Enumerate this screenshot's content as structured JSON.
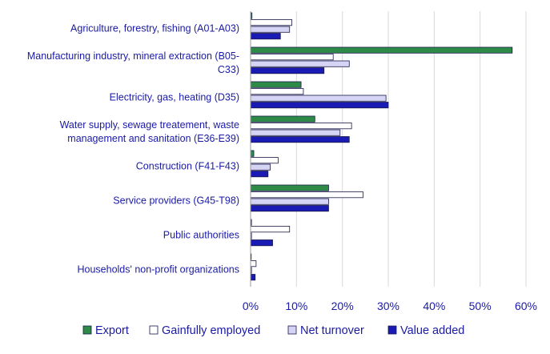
{
  "chart_data": {
    "type": "bar",
    "orientation": "horizontal",
    "title": "",
    "xlabel": "",
    "ylabel": "",
    "xlim": [
      0,
      60
    ],
    "x_ticks": [
      "0%",
      "10%",
      "20%",
      "30%",
      "40%",
      "50%",
      "60%"
    ],
    "grid": "vertical",
    "legend_position": "bottom",
    "categories": [
      [
        "Agriculture, forestry, fishing (A01-A03)"
      ],
      [
        "Manufacturing industry, mineral extraction (B05-",
        "C33)"
      ],
      [
        "Electricity, gas, heating (D35)"
      ],
      [
        "Water supply, sewage treatement, waste",
        "management and sanitation (E36-E39)"
      ],
      [
        "Construction (F41-F43)"
      ],
      [
        "Service providers (G45-T98)"
      ],
      [
        "Public authorities"
      ],
      [
        "Households' non-profit organizations"
      ]
    ],
    "series": [
      {
        "name": "Export",
        "color": "#2e8b47",
        "values": [
          0.3,
          57,
          11,
          14,
          0.7,
          17,
          0.2,
          0
        ]
      },
      {
        "name": "Gainfully employed",
        "color": "#ffffff",
        "values": [
          9,
          18,
          11.5,
          22,
          6,
          24.5,
          8.5,
          1.2
        ]
      },
      {
        "name": "Net turnover",
        "color": "#d6d4f4",
        "values": [
          8.5,
          21.5,
          29.5,
          19.5,
          4.3,
          17,
          0.2,
          0.2
        ]
      },
      {
        "name": "Value added",
        "color": "#1a1ab4",
        "values": [
          6.5,
          16,
          30,
          21.5,
          3.8,
          17,
          4.8,
          1
        ]
      }
    ]
  }
}
